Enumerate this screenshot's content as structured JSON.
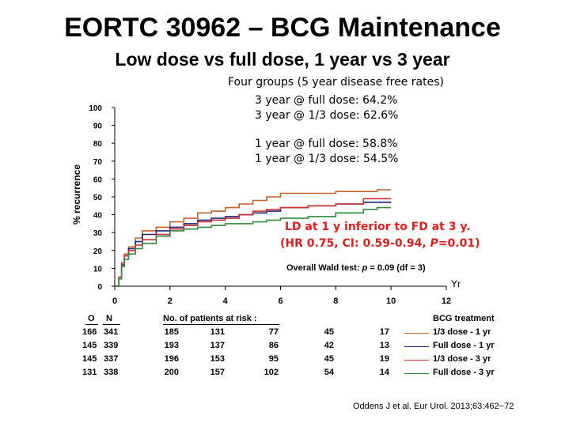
{
  "title": "EORTC 30962 – BCG Maintenance",
  "subtitle": "Low dose vs full dose, 1 year vs 3 year",
  "notes": {
    "groups_heading": "Four groups (5 year disease free rates)",
    "line1": "3 year @ full dose: 64.2%",
    "line2": "3 year @ 1/3 dose: 62.6%",
    "line3": "1 year @ full dose: 58.8%",
    "line4": "1 year @ 1/3 dose: 54.5%"
  },
  "annotation": {
    "line1": "LD at 1 y inferior to FD at 3 y.",
    "line2_prefix": "(HR 0.75, CI: 0.59-0.94, ",
    "line2_p": "P",
    "line2_suffix": "=0.01)"
  },
  "wald": {
    "prefix": "Overall Wald test: ",
    "p": "p",
    "suffix": " = 0.09 (df = 3)"
  },
  "risk_table": {
    "header_o": "O",
    "header_n": "N",
    "header_title": "No. of patients at risk :",
    "header_treatment": "BCG treatment",
    "rows": [
      {
        "o": "166",
        "n": "341",
        "counts": [
          "185",
          "131",
          "77",
          "45",
          "17"
        ],
        "label": "1/3 dose - 1 yr",
        "color": "#c0622a"
      },
      {
        "o": "145",
        "n": "339",
        "counts": [
          "193",
          "137",
          "86",
          "42",
          "13"
        ],
        "label": "Full dose - 1 yr",
        "color": "#1a237e"
      },
      {
        "o": "145",
        "n": "337",
        "counts": [
          "196",
          "153",
          "95",
          "45",
          "19"
        ],
        "label": "1/3 dose - 3 yr",
        "color": "#d32f2f"
      },
      {
        "o": "131",
        "n": "338",
        "counts": [
          "200",
          "157",
          "102",
          "54",
          "14"
        ],
        "label": "Full dose - 3 yr",
        "color": "#2e8b3a"
      }
    ]
  },
  "citation": "Oddens J et al. Eur Urol. 2013;63:462−72",
  "chart_data": {
    "type": "line",
    "ylabel": "% recurrence",
    "xlabel": "Yr",
    "xlim": [
      0,
      12
    ],
    "ylim": [
      0,
      100
    ],
    "xticks": [
      "0",
      "2",
      "4",
      "6",
      "8",
      "10",
      "12"
    ],
    "yticks": [
      "0",
      "10",
      "20",
      "30",
      "40",
      "50",
      "60",
      "70",
      "80",
      "90",
      "100"
    ],
    "series": [
      {
        "name": "1/3 dose - 1 yr",
        "color": "#c0622a",
        "x": [
          0,
          0.15,
          0.25,
          0.35,
          0.5,
          0.75,
          1,
          1.5,
          2,
          2.5,
          3,
          3.5,
          4,
          4.5,
          5,
          5.5,
          6,
          7,
          8,
          9,
          9.5,
          10
        ],
        "y": [
          0,
          5,
          13,
          18,
          22,
          27,
          31,
          33,
          36,
          38,
          41,
          42,
          44,
          46,
          48,
          50,
          52,
          52,
          53,
          53,
          54,
          54
        ]
      },
      {
        "name": "Full dose - 1 yr",
        "color": "#1a237e",
        "x": [
          0,
          0.15,
          0.25,
          0.35,
          0.5,
          0.75,
          1,
          1.5,
          2,
          2.5,
          3,
          3.5,
          4,
          4.5,
          5,
          5.5,
          6,
          7,
          8,
          9,
          9.5,
          10
        ],
        "y": [
          0,
          5,
          12,
          17,
          21,
          25,
          29,
          31,
          33,
          35,
          37,
          38,
          39,
          40,
          41,
          42,
          44,
          45,
          46,
          47,
          47,
          47
        ]
      },
      {
        "name": "1/3 dose - 3 yr",
        "color": "#d32f2f",
        "x": [
          0,
          0.15,
          0.25,
          0.35,
          0.5,
          0.75,
          1,
          1.5,
          2,
          2.5,
          3,
          3.5,
          4,
          4.5,
          5,
          5.5,
          6,
          7,
          8,
          9,
          9.5,
          10
        ],
        "y": [
          0,
          5,
          13,
          17,
          20,
          23,
          26,
          29,
          32,
          34,
          36,
          37,
          38,
          40,
          42,
          43,
          44,
          45,
          46,
          49,
          49,
          49
        ]
      },
      {
        "name": "Full dose - 3 yr",
        "color": "#2e8b3a",
        "x": [
          0,
          0.15,
          0.25,
          0.35,
          0.5,
          0.75,
          1,
          1.5,
          2,
          2.5,
          3,
          3.5,
          4,
          4.5,
          5,
          5.5,
          6,
          7,
          8,
          9,
          9.5,
          10
        ],
        "y": [
          0,
          4,
          11,
          15,
          18,
          21,
          24,
          28,
          31,
          32,
          33,
          34,
          35,
          35,
          36,
          37,
          38,
          39,
          41,
          43,
          44,
          44
        ]
      }
    ]
  }
}
